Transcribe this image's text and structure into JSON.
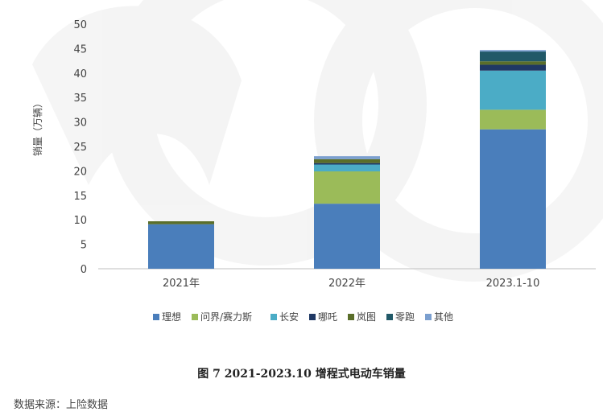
{
  "chart_data": {
    "type": "bar",
    "stacked": true,
    "categories": [
      "2021年",
      "2022年",
      "2023.1-10"
    ],
    "ylabel": "销量（万辆）",
    "ylim": [
      0,
      50
    ],
    "yticks": [
      0,
      5,
      10,
      15,
      20,
      25,
      30,
      35,
      40,
      45,
      50
    ],
    "grid": false,
    "legend_position": "bottom",
    "series": [
      {
        "name": "理想",
        "color": "#4a7ebb",
        "values": [
          9.1,
          13.3,
          28.5
        ]
      },
      {
        "name": "问界/赛力斯",
        "color": "#9bbb59",
        "values": [
          0.0,
          6.6,
          4.0
        ]
      },
      {
        "name": "长安",
        "color": "#4bacc6",
        "values": [
          0.0,
          1.4,
          8.0
        ]
      },
      {
        "name": "哪吒",
        "color": "#1f3864",
        "values": [
          0.0,
          0.3,
          1.2
        ]
      },
      {
        "name": "岚图",
        "color": "#5a6e2a",
        "values": [
          0.6,
          0.8,
          0.7
        ]
      },
      {
        "name": "零跑",
        "color": "#215968",
        "values": [
          0.0,
          0.0,
          2.0
        ]
      },
      {
        "name": "其他",
        "color": "#7b9fcf",
        "values": [
          0.0,
          0.6,
          0.3
        ]
      }
    ]
  },
  "caption": "图 7 2021-2023.10 增程式电动车销量",
  "source": "数据来源：上险数据"
}
